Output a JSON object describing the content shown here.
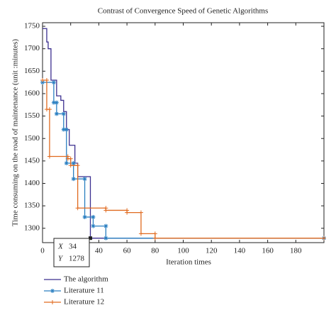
{
  "chart_data": {
    "type": "line",
    "title": "Contrast of Convergence Speed of Genetic Algorithms",
    "x_label": "Iteration times",
    "y_label": "Time consuming on the road of maintenance (unit :minutes)",
    "xlim": [
      0,
      200
    ],
    "xticks": [
      0,
      20,
      40,
      60,
      80,
      100,
      120,
      140,
      160,
      180
    ],
    "ylim": [
      1268,
      1758
    ],
    "yticks": [
      1300,
      1350,
      1400,
      1450,
      1500,
      1550,
      1600,
      1650,
      1700,
      1750
    ],
    "series": [
      {
        "name": "The algorithm",
        "color": "#3b2f8f",
        "marker": "none",
        "x": [
          0,
          3,
          3,
          4,
          4,
          6,
          6,
          10,
          10,
          13,
          13,
          15,
          15,
          17,
          17,
          19,
          19,
          23,
          23,
          25,
          25,
          34,
          34,
          200
        ],
        "values": [
          1745,
          1745,
          1715,
          1715,
          1700,
          1700,
          1630,
          1630,
          1595,
          1595,
          1585,
          1585,
          1560,
          1560,
          1520,
          1520,
          1485,
          1485,
          1445,
          1445,
          1415,
          1415,
          1278,
          1278
        ]
      },
      {
        "name": "Literature 11",
        "color": "#2a7fc1",
        "marker": "star",
        "x": [
          0,
          8,
          8,
          10,
          10,
          15,
          15,
          17,
          17,
          22,
          22,
          30,
          30,
          36,
          36,
          45,
          45,
          200
        ],
        "values": [
          1625,
          1625,
          1580,
          1580,
          1555,
          1555,
          1520,
          1520,
          1445,
          1445,
          1410,
          1410,
          1325,
          1325,
          1305,
          1305,
          1278,
          1278
        ]
      },
      {
        "name": "Literature 12",
        "color": "#e06a1f",
        "marker": "plus",
        "x": [
          0,
          3,
          3,
          5,
          5,
          18,
          18,
          20,
          20,
          25,
          25,
          45,
          45,
          60,
          60,
          70,
          70,
          80,
          80,
          200
        ],
        "values": [
          1630,
          1630,
          1565,
          1565,
          1460,
          1460,
          1455,
          1455,
          1440,
          1440,
          1345,
          1345,
          1340,
          1340,
          1335,
          1335,
          1288,
          1288,
          1278,
          1278
        ]
      }
    ],
    "datatip": {
      "x_label": "X",
      "x": 34,
      "y_label": "Y",
      "y": 1278
    }
  }
}
